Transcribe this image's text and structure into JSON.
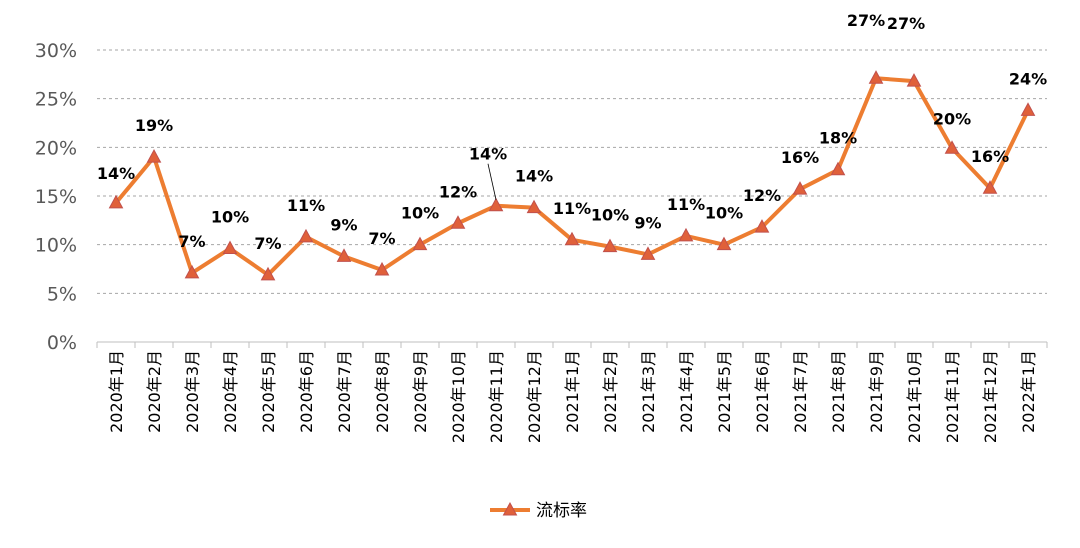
{
  "chart_data": {
    "type": "line",
    "title": "",
    "xlabel": "",
    "ylabel": "",
    "ylim": [
      0,
      30
    ],
    "yticks": [
      "0%",
      "5%",
      "10%",
      "15%",
      "20%",
      "25%",
      "30%"
    ],
    "grid": true,
    "legend_position": "bottom",
    "categories": [
      "2020年1月",
      "2020年2月",
      "2020年3月",
      "2020年4月",
      "2020年5月",
      "2020年6月",
      "2020年7月",
      "2020年8月",
      "2020年9月",
      "2020年10月",
      "2020年11月",
      "2020年12月",
      "2021年1月",
      "2021年2月",
      "2021年3月",
      "2021年4月",
      "2021年5月",
      "2021年6月",
      "2021年7月",
      "2021年8月",
      "2021年9月",
      "2021年10月",
      "2021年11月",
      "2021年12月",
      "2022年1月"
    ],
    "series": [
      {
        "name": "流标率",
        "color": "#ED7D31",
        "marker_color": "#E0603A",
        "marker": "triangle",
        "values": [
          14.3,
          19.0,
          7.1,
          9.6,
          6.9,
          10.8,
          8.8,
          7.4,
          10.0,
          12.2,
          14.0,
          13.8,
          10.5,
          9.8,
          9.0,
          10.9,
          10.0,
          11.8,
          15.7,
          17.7,
          27.1,
          26.8,
          19.9,
          15.8,
          23.8
        ],
        "labels": [
          "14%",
          "19%",
          "7%",
          "10%",
          "7%",
          "11%",
          "9%",
          "7%",
          "10%",
          "12%",
          "14%",
          "14%",
          "11%",
          "10%",
          "9%",
          "11%",
          "10%",
          "12%",
          "16%",
          "18%",
          "27%",
          "27%",
          "20%",
          "16%",
          "24%"
        ]
      }
    ]
  }
}
